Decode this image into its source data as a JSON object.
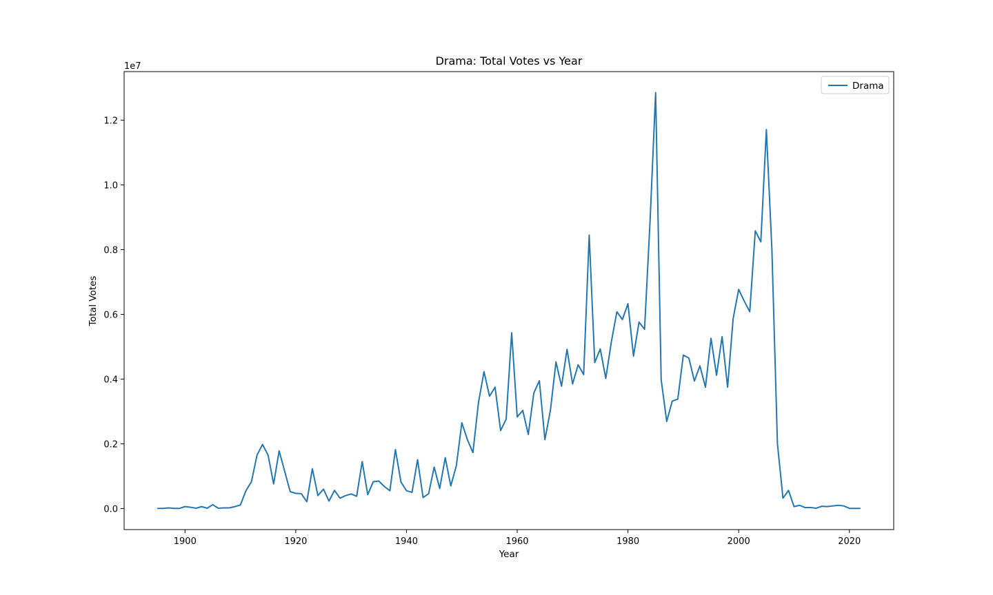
{
  "chart_data": {
    "type": "line",
    "title": "Drama: Total Votes vs Year",
    "xlabel": "Year",
    "ylabel": "Total Votes",
    "y_scale_label": "1e7",
    "xlim": [
      1889,
      2028
    ],
    "ylim": [
      -650000,
      13500000
    ],
    "x_ticks": [
      1900,
      1920,
      1940,
      1960,
      1980,
      2000,
      2020
    ],
    "x_tick_labels": [
      "1900",
      "1920",
      "1940",
      "1960",
      "1980",
      "2000",
      "2020"
    ],
    "y_ticks": [
      0,
      2000000,
      4000000,
      6000000,
      8000000,
      10000000,
      12000000
    ],
    "y_tick_labels": [
      "0.0",
      "0.2",
      "0.4",
      "0.6",
      "0.8",
      "1.0",
      "1.2"
    ],
    "legend_position": "top-right",
    "grid": false,
    "color": "#1f77b4",
    "series": [
      {
        "name": "Drama",
        "x": [
          1895,
          1896,
          1897,
          1898,
          1899,
          1900,
          1901,
          1902,
          1903,
          1904,
          1905,
          1906,
          1907,
          1908,
          1909,
          1910,
          1911,
          1912,
          1913,
          1914,
          1915,
          1916,
          1917,
          1918,
          1919,
          1920,
          1921,
          1922,
          1923,
          1924,
          1925,
          1926,
          1927,
          1928,
          1929,
          1930,
          1931,
          1932,
          1933,
          1934,
          1935,
          1936,
          1937,
          1938,
          1939,
          1940,
          1941,
          1942,
          1943,
          1944,
          1945,
          1946,
          1947,
          1948,
          1949,
          1950,
          1951,
          1952,
          1953,
          1954,
          1955,
          1956,
          1957,
          1958,
          1959,
          1960,
          1961,
          1962,
          1963,
          1964,
          1965,
          1966,
          1967,
          1968,
          1969,
          1970,
          1971,
          1972,
          1973,
          1974,
          1975,
          1976,
          1977,
          1978,
          1979,
          1980,
          1981,
          1982,
          1983,
          1984,
          1985,
          1986,
          1987,
          1988,
          1989,
          1990,
          1991,
          1992,
          1993,
          1994,
          1995,
          1996,
          1997,
          1998,
          1999,
          2000,
          2001,
          2002,
          2003,
          2004,
          2005,
          2006,
          2007,
          2008,
          2009,
          2010,
          2011,
          2012,
          2013,
          2014,
          2015,
          2016,
          2017,
          2018,
          2019,
          2020,
          2021,
          2022
        ],
        "y": [
          5000,
          5000,
          20000,
          5000,
          5000,
          60000,
          40000,
          10000,
          60000,
          10000,
          120000,
          10000,
          20000,
          20000,
          60000,
          110000,
          550000,
          830000,
          1650000,
          1980000,
          1650000,
          760000,
          1780000,
          1150000,
          520000,
          470000,
          460000,
          210000,
          1230000,
          400000,
          600000,
          230000,
          560000,
          320000,
          400000,
          450000,
          380000,
          1450000,
          430000,
          830000,
          850000,
          680000,
          550000,
          1820000,
          820000,
          550000,
          500000,
          1510000,
          340000,
          460000,
          1280000,
          620000,
          1570000,
          700000,
          1320000,
          2650000,
          2130000,
          1730000,
          3270000,
          4230000,
          3470000,
          3750000,
          2410000,
          2760000,
          5430000,
          2830000,
          3030000,
          2290000,
          3570000,
          3950000,
          2130000,
          3040000,
          4530000,
          3780000,
          4920000,
          3850000,
          4440000,
          4140000,
          8450000,
          4510000,
          4930000,
          4020000,
          5150000,
          6080000,
          5840000,
          6330000,
          4710000,
          5760000,
          5540000,
          8900000,
          12850000,
          3980000,
          2690000,
          3320000,
          3380000,
          4740000,
          4650000,
          3940000,
          4410000,
          3750000,
          5260000,
          4120000,
          5310000,
          3750000,
          5870000,
          6770000,
          6410000,
          6080000,
          8580000,
          8240000,
          11710000,
          8000000,
          2000000,
          320000,
          560000,
          60000,
          100000,
          30000,
          30000,
          10000,
          70000,
          60000,
          80000,
          100000,
          80000,
          5000,
          5000,
          5000
        ]
      }
    ]
  }
}
